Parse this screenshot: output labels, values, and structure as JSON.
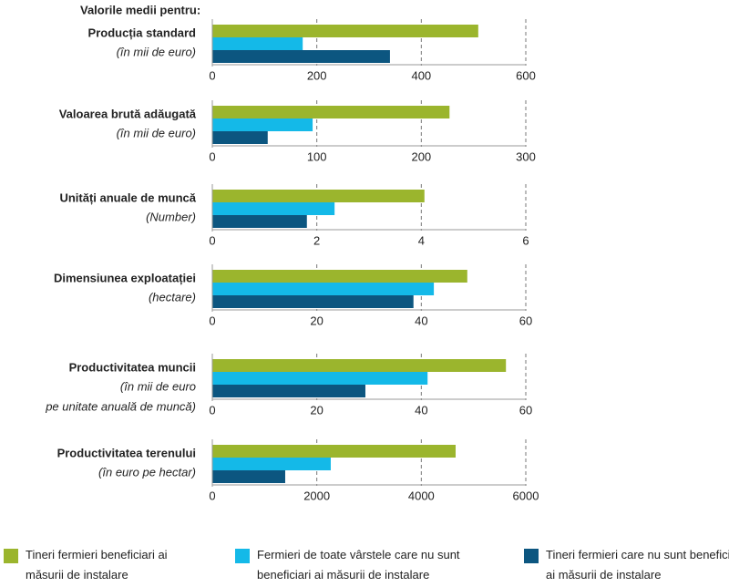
{
  "header": "Valorile medii pentru:",
  "legend": [
    {
      "name": "Tineri fermieri beneficiari ai măsurii de instalare",
      "color": "#9bb52d"
    },
    {
      "name": "Fermieri de toate vârstele care nu sunt beneficiari ai măsurii de instalare",
      "color": "#14b9e8"
    },
    {
      "name": "Tineri fermieri care nu sunt beneficiari ai măsurii de instalare",
      "color": "#0c5680"
    }
  ],
  "chart_data": [
    {
      "type": "bar",
      "title": "Producția standard",
      "subtitle": [
        "(în mii de euro)"
      ],
      "values": [
        509,
        173,
        340
      ],
      "xlim": [
        0,
        600
      ],
      "xticks": [
        0,
        200,
        400,
        600
      ]
    },
    {
      "type": "bar",
      "title": "Valoarea brută adăugată",
      "subtitle": [
        "(în mii de euro)"
      ],
      "values": [
        227,
        96,
        53
      ],
      "xlim": [
        0,
        300
      ],
      "xticks": [
        0,
        100,
        200,
        300
      ]
    },
    {
      "type": "bar",
      "title": "Unități anuale de muncă",
      "subtitle": [
        "(Number)"
      ],
      "values": [
        4.06,
        2.34,
        1.81
      ],
      "xlim": [
        0,
        6
      ],
      "xticks": [
        0,
        2,
        4,
        6
      ]
    },
    {
      "type": "bar",
      "title": "Dimensiunea exploatației",
      "subtitle": [
        "(hectare)"
      ],
      "values": [
        48.8,
        42.4,
        38.5
      ],
      "xlim": [
        0,
        60
      ],
      "xticks": [
        0,
        20,
        40,
        60
      ]
    },
    {
      "type": "bar",
      "title": "Productivitatea muncii",
      "subtitle": [
        "(în mii de euro",
        "pe unitate anuală de muncă)"
      ],
      "values": [
        56.2,
        41.2,
        29.3
      ],
      "xlim": [
        0,
        60
      ],
      "xticks": [
        0,
        20,
        40,
        60
      ]
    },
    {
      "type": "bar",
      "title": "Productivitatea terenului",
      "subtitle": [
        "(în euro pe hectar)"
      ],
      "values": [
        4657,
        2267,
        1395
      ],
      "xlim": [
        0,
        6000
      ],
      "xticks": [
        0,
        2000,
        4000,
        6000
      ]
    }
  ]
}
